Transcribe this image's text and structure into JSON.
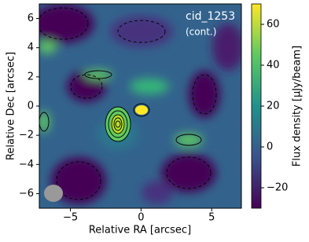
{
  "chart_data": {
    "type": "heatmap",
    "annotations": [
      "cid_1253",
      "(cont.)"
    ],
    "xlabel": "Relative RA [arcsec]",
    "ylabel": "Relative Dec [arcsec]",
    "colorbar_label": "Flux density [μJy/beam]",
    "colormap": "viridis",
    "xlim": [
      -7.2,
      7.1
    ],
    "ylim": [
      -7,
      7
    ],
    "xticks": [
      {
        "value": -5,
        "label": "−5"
      },
      0,
      5
    ],
    "yticks": [
      {
        "value": -6,
        "label": "−6"
      },
      {
        "value": -4,
        "label": "−4"
      },
      {
        "value": -2,
        "label": "−2"
      },
      0,
      2,
      4,
      6
    ],
    "clim": [
      -30,
      70
    ],
    "cticks": [
      {
        "value": -20,
        "label": "−20"
      },
      0,
      20,
      40,
      60
    ]
  }
}
